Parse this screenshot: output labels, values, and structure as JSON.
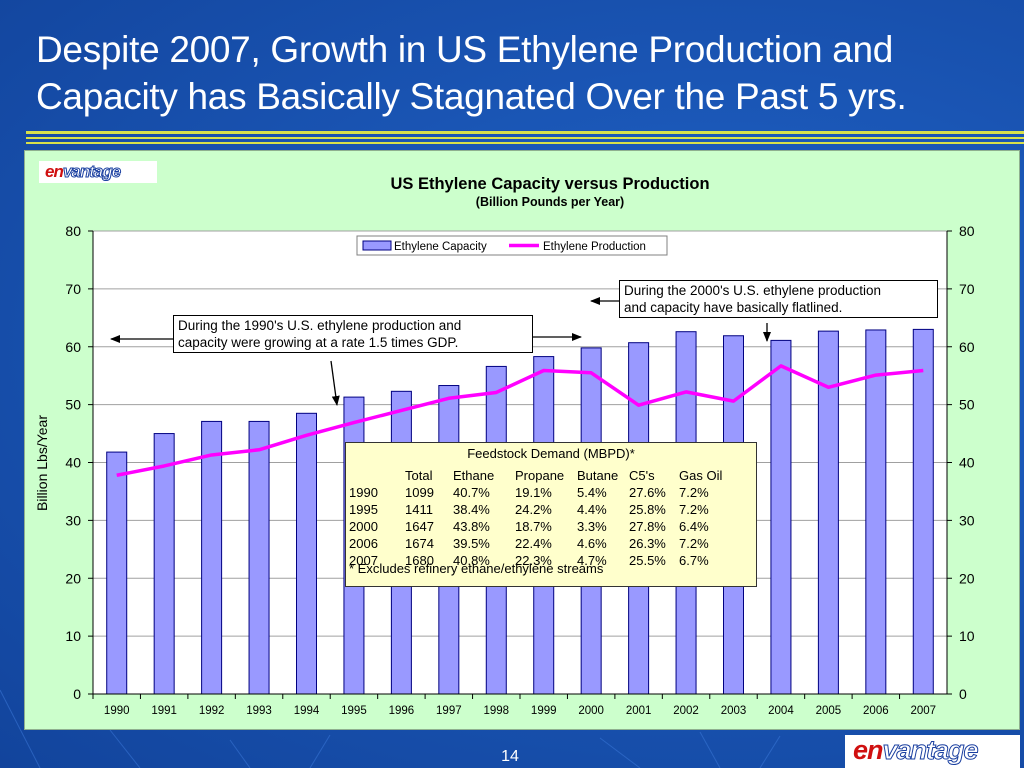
{
  "slide": {
    "title_line1": "Despite 2007, Growth in US Ethylene Production and",
    "title_line2": "Capacity has  Basically Stagnated Over the Past 5 yrs.",
    "page_number": "14",
    "logo_text_en": "en",
    "logo_text_rest": "vantage"
  },
  "colors": {
    "background": "#1a55b4",
    "title_rule": "#d8e04a",
    "panel": "#ccffcc",
    "bar_fill": "#9999ff",
    "bar_stroke": "#000080",
    "line": "#ff00ff",
    "feedstock_box": "#ffffcc"
  },
  "chart_data": {
    "type": "bar",
    "title": "US Ethylene Capacity versus Production",
    "subtitle": "(Billion Pounds per Year)",
    "ylabel": "Billion Lbs/Year",
    "xlabel": "",
    "ylim": [
      0,
      80
    ],
    "y_ticks": [
      0,
      10,
      20,
      30,
      40,
      50,
      60,
      70,
      80
    ],
    "grid": true,
    "secondary_y_axis": true,
    "legend_position": "top-center",
    "categories": [
      "1990",
      "1991",
      "1992",
      "1993",
      "1994",
      "1995",
      "1996",
      "1997",
      "1998",
      "1999",
      "2000",
      "2001",
      "2002",
      "2003",
      "2004",
      "2005",
      "2006",
      "2007"
    ],
    "series": [
      {
        "name": "Ethylene Capacity",
        "type": "bar",
        "values": [
          41.8,
          45.0,
          47.1,
          47.1,
          48.5,
          51.3,
          52.3,
          53.3,
          56.6,
          58.3,
          59.8,
          60.7,
          62.6,
          61.9,
          61.1,
          62.7,
          62.9,
          63.0
        ]
      },
      {
        "name": "Ethylene Production",
        "type": "line",
        "values": [
          37.8,
          39.4,
          41.3,
          42.2,
          44.7,
          46.9,
          49.0,
          51.1,
          52.1,
          55.9,
          55.5,
          49.9,
          52.2,
          50.6,
          56.7,
          53.0,
          55.1,
          55.9
        ]
      }
    ],
    "annotations": [
      {
        "id": "callout_1990s",
        "line1": "During the 1990's U.S. ethylene production and",
        "line2": "capacity were growing at a rate 1.5 times GDP."
      },
      {
        "id": "callout_2000s",
        "line1": "During the 2000's U.S. ethylene production",
        "line2": "and capacity have basically flatlined."
      }
    ],
    "feedstock_table": {
      "title": "Feedstock Demand (MBPD)*",
      "columns": [
        "",
        "Total",
        "Ethane",
        "Propane",
        "Butane",
        "C5's",
        "Gas Oil"
      ],
      "rows": [
        [
          "1990",
          "1099",
          "40.7%",
          "19.1%",
          "5.4%",
          "27.6%",
          "7.2%"
        ],
        [
          "1995",
          "1411",
          "38.4%",
          "24.2%",
          "4.4%",
          "25.8%",
          "7.2%"
        ],
        [
          "2000",
          "1647",
          "43.8%",
          "18.7%",
          "3.3%",
          "27.8%",
          "6.4%"
        ],
        [
          "2006",
          "1674",
          "39.5%",
          "22.4%",
          "4.6%",
          "26.3%",
          "7.2%"
        ],
        [
          "2007",
          "1680",
          "40.8%",
          "22.3%",
          "4.7%",
          "25.5%",
          "6.7%"
        ]
      ],
      "footnote": "* Excludes refinery ethane/ethylene streams"
    }
  }
}
